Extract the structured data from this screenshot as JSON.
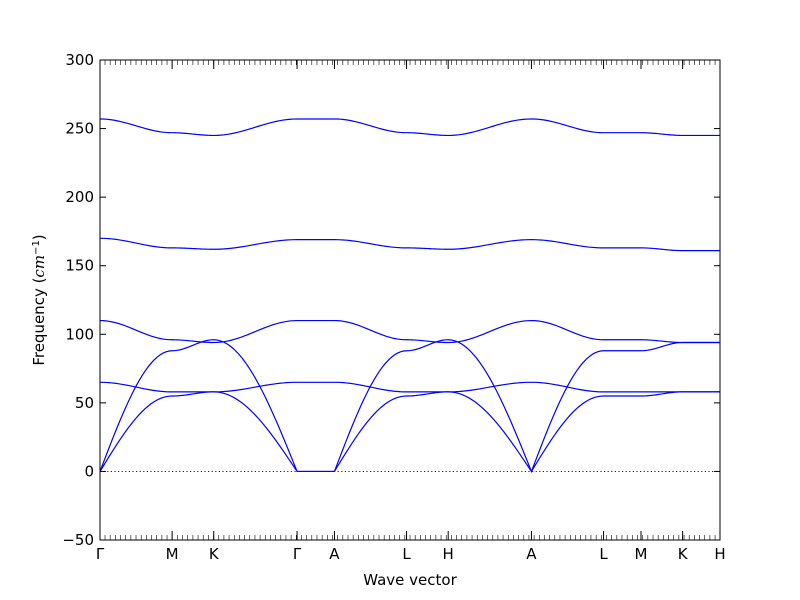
{
  "chart_data": {
    "type": "line",
    "title": "",
    "xlabel": "Wave vector",
    "ylabel_prefix": "Frequency (",
    "ylabel_unit_base": "cm",
    "ylabel_unit_exp": "−1",
    "ylabel_suffix": ")",
    "ylim": [
      -50,
      300
    ],
    "yticks": [
      -50,
      0,
      50,
      100,
      150,
      200,
      250,
      300
    ],
    "x_points": [
      {
        "label": "Γ",
        "x": 0.0
      },
      {
        "label": "M",
        "x": 1.0
      },
      {
        "label": "K",
        "x": 1.577
      },
      {
        "label": "Γ",
        "x": 2.732
      },
      {
        "label": "A",
        "x": 3.25
      },
      {
        "label": "L",
        "x": 4.25
      },
      {
        "label": "H",
        "x": 4.827
      },
      {
        "label": "A",
        "x": 5.981
      },
      {
        "label": "L",
        "x": 6.981
      },
      {
        "label": "M",
        "x": 7.5
      },
      {
        "label": "K",
        "x": 8.077
      },
      {
        "label": "H",
        "x": 8.595
      }
    ],
    "xlim": [
      0.0,
      8.595
    ],
    "zero_line": true,
    "grid": false,
    "series": [
      {
        "values_at_points": [
          257,
          247,
          245,
          257,
          257,
          247,
          245,
          257,
          247,
          247,
          245,
          245
        ]
      },
      {
        "values_at_points": [
          170,
          163,
          162,
          169,
          169,
          163,
          162,
          169,
          163,
          163,
          161,
          161
        ]
      },
      {
        "values_at_points": [
          110,
          96,
          94,
          110,
          110,
          96,
          94,
          110,
          96,
          96,
          94,
          94
        ]
      },
      {
        "values_at_points": [
          0,
          88,
          96,
          0,
          0,
          88,
          96,
          0,
          88,
          88,
          94,
          94
        ]
      },
      {
        "values_at_points": [
          65,
          58,
          58,
          65,
          65,
          58,
          58,
          65,
          58,
          58,
          58,
          58
        ]
      },
      {
        "values_at_points": [
          0,
          55,
          58,
          0,
          0,
          55,
          58,
          0,
          55,
          55,
          58,
          58
        ]
      }
    ],
    "colors": {
      "bands": "#0000ff",
      "axes": "#000000"
    }
  }
}
